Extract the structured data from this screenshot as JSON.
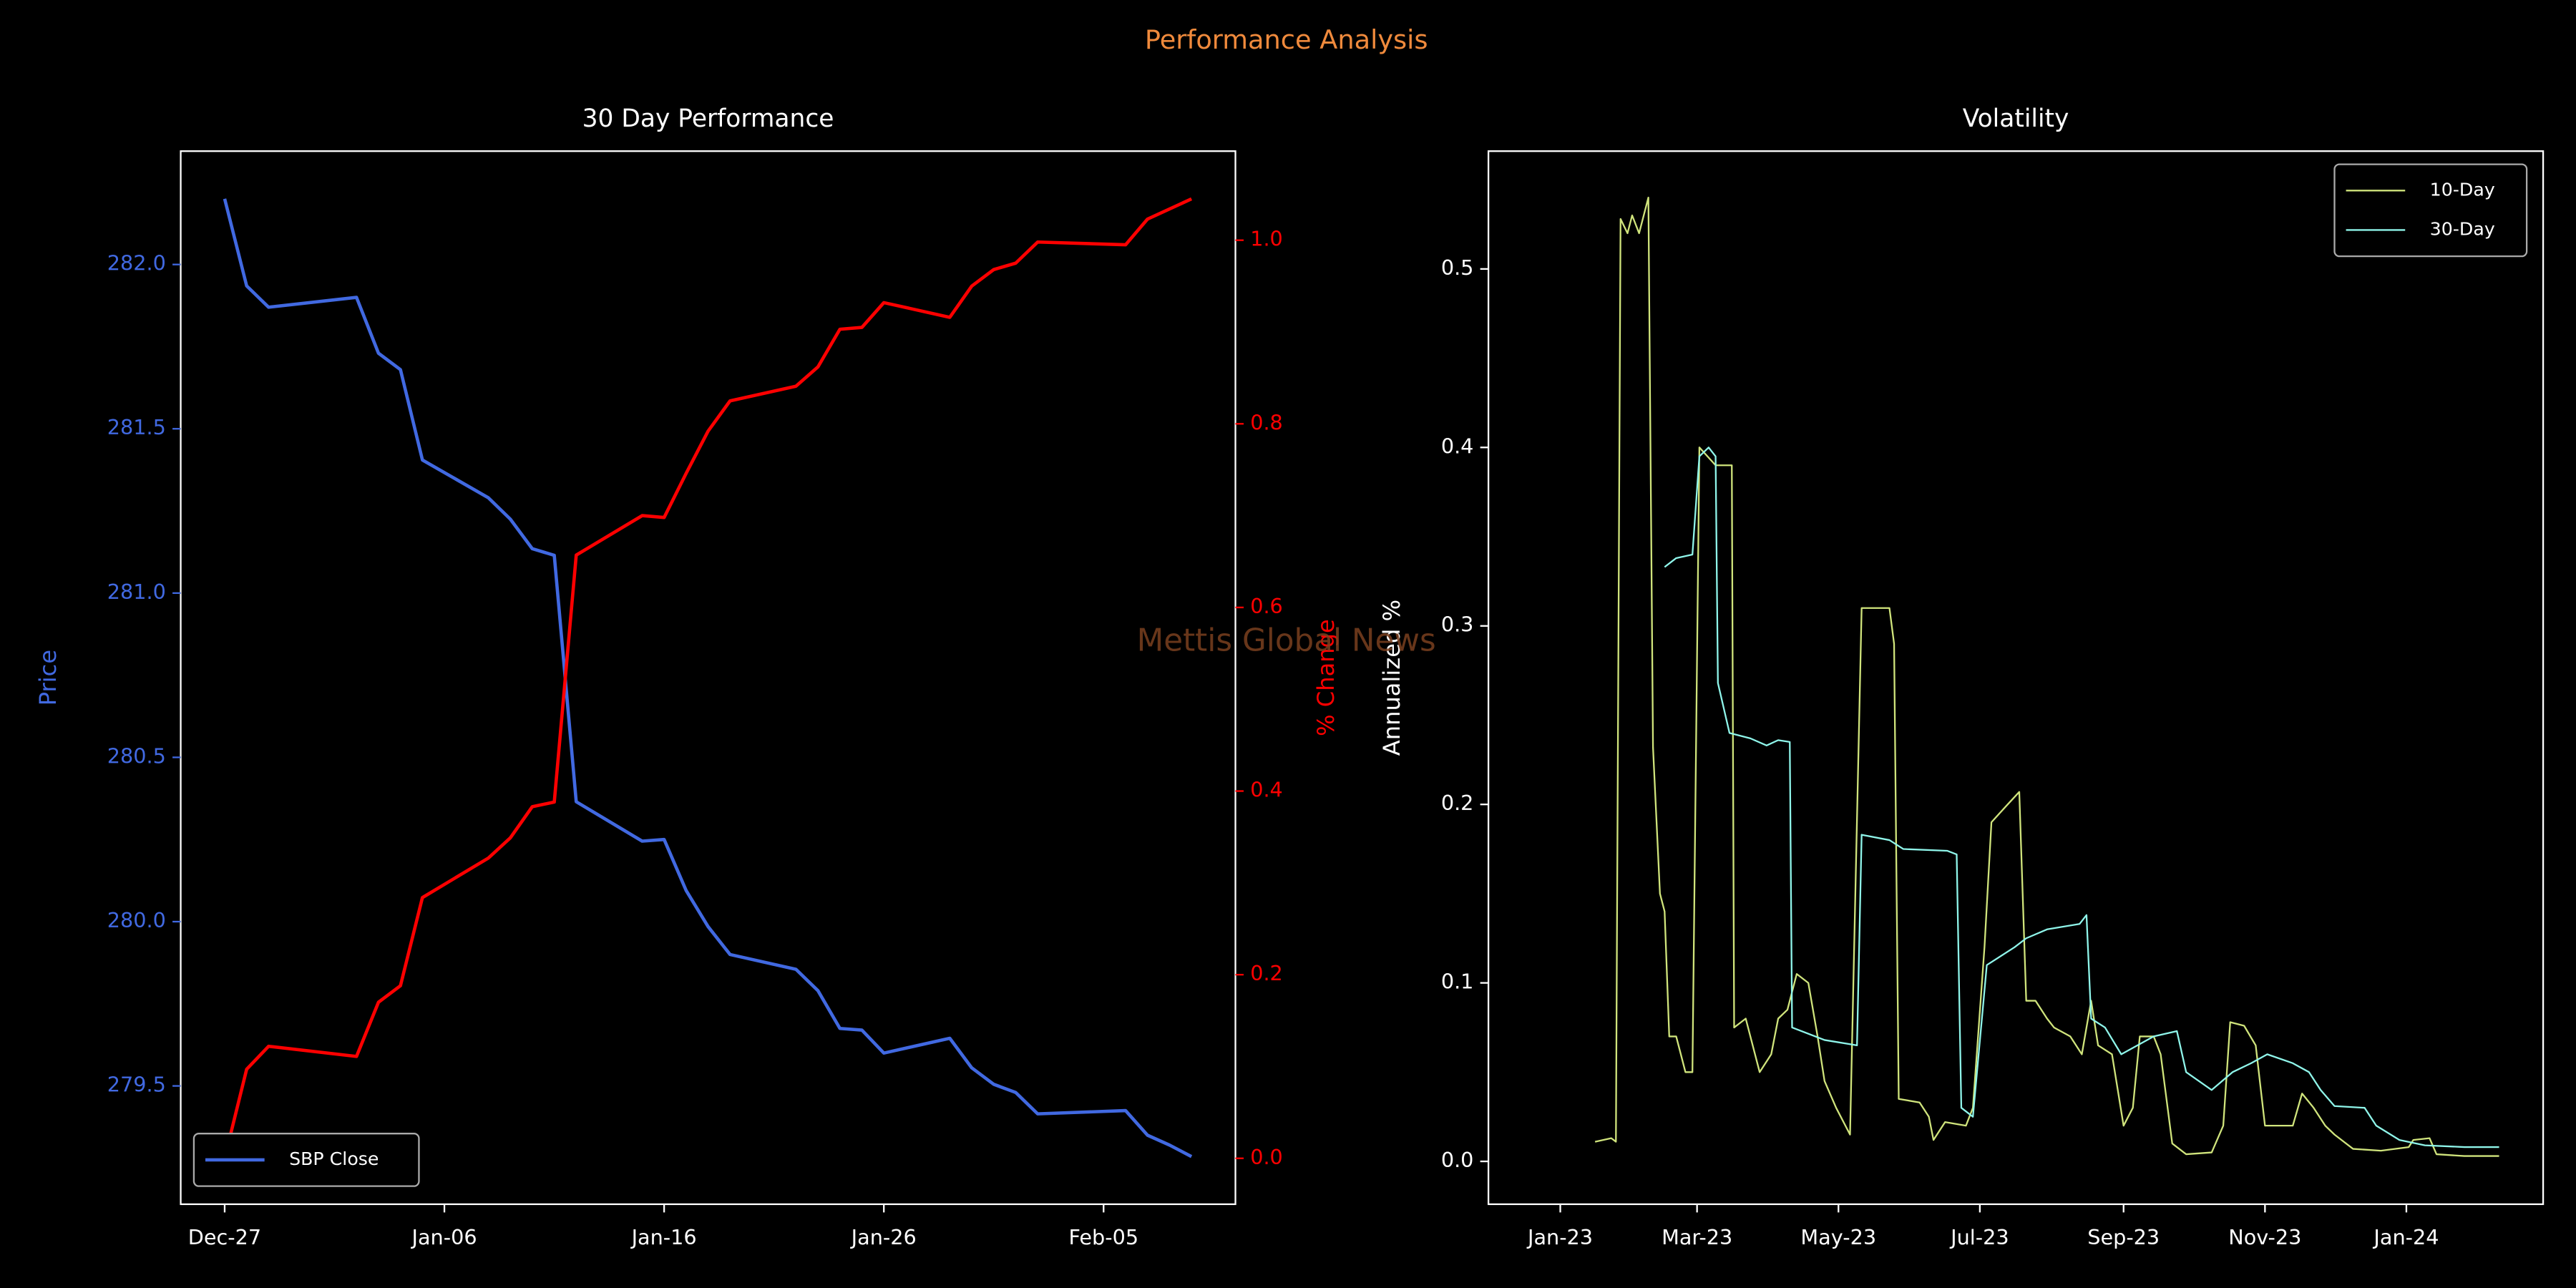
{
  "suptitle": "Performance Analysis",
  "watermark": "Mettis Global News",
  "chart_data": [
    {
      "type": "line",
      "title": "30 Day Performance",
      "ylabel": "Price",
      "y2label": "% Change",
      "legend": "lower left",
      "x": [
        "Dec-27",
        "Dec-28",
        "Dec-29",
        "Jan-02",
        "Jan-03",
        "Jan-04",
        "Jan-05",
        "Jan-08",
        "Jan-09",
        "Jan-10",
        "Jan-11",
        "Jan-12",
        "Jan-15",
        "Jan-16",
        "Jan-17",
        "Jan-18",
        "Jan-19",
        "Jan-22",
        "Jan-23",
        "Jan-24",
        "Jan-25",
        "Jan-26",
        "Jan-29",
        "Jan-30",
        "Jan-31",
        "Feb-01",
        "Feb-02",
        "Feb-06",
        "Feb-07",
        "Feb-08",
        "Feb-09"
      ],
      "xlim": [
        "Dec-25",
        "Feb-11"
      ],
      "xticks": [
        "Dec-27",
        "Jan-06",
        "Jan-16",
        "Jan-26",
        "Feb-05"
      ],
      "ylim": [
        279.14,
        282.345
      ],
      "yticks": [
        279.5,
        {
          "value": 280,
          "label": "280.0"
        },
        280.5,
        {
          "value": 281,
          "label": "281.0"
        },
        281.5,
        {
          "value": 282,
          "label": "282.0"
        }
      ],
      "y2lim": [
        -0.05,
        1.097
      ],
      "y2ticks": [
        {
          "value": 0,
          "label": "0.0"
        },
        0.2,
        0.4,
        0.6,
        0.8,
        {
          "value": 1,
          "label": "1.0"
        }
      ],
      "series": [
        {
          "name": "SBP Close",
          "color": "#4169e1",
          "values": [
            282.2,
            281.935,
            281.87,
            281.9,
            281.73,
            281.68,
            281.405,
            281.29,
            281.225,
            281.135,
            281.115,
            280.365,
            280.245,
            280.25,
            280.095,
            279.985,
            279.9,
            279.855,
            279.79,
            279.675,
            279.67,
            279.6,
            279.645,
            279.555,
            279.505,
            279.48,
            279.415,
            279.425,
            279.35,
            279.32,
            279.285
          ]
        },
        {
          "color": "#ff0000",
          "axis": "y2",
          "values": [
            0.0,
            0.097,
            0.122,
            0.111,
            0.17,
            0.188,
            0.284,
            0.327,
            0.349,
            0.383,
            0.388,
            0.657,
            0.7,
            0.698,
            0.746,
            0.792,
            0.825,
            0.841,
            0.862,
            0.903,
            0.905,
            0.932,
            0.916,
            0.95,
            0.968,
            0.975,
            0.998,
            0.995,
            1.023,
            1.034,
            1.045
          ]
        }
      ]
    },
    {
      "type": "line",
      "title": "Volatility",
      "ylabel": "Annualized %",
      "legend": "upper right",
      "xlim": [
        "2022-12-01",
        "2024-02-29"
      ],
      "xticks": [
        {
          "value": "2023-01-01",
          "label": "Jan-23"
        },
        {
          "value": "2023-03-01",
          "label": "Mar-23"
        },
        {
          "value": "2023-05-01",
          "label": "May-23"
        },
        {
          "value": "2023-07-01",
          "label": "Jul-23"
        },
        {
          "value": "2023-09-01",
          "label": "Sep-23"
        },
        {
          "value": "2023-11-01",
          "label": "Nov-23"
        },
        {
          "value": "2024-01-01",
          "label": "Jan-24"
        }
      ],
      "ylim": [
        -0.024,
        0.566
      ],
      "yticks": [
        {
          "value": 0,
          "label": "0.0"
        },
        0.1,
        0.2,
        0.3,
        0.4,
        0.5
      ],
      "series": [
        {
          "name": "10-Day",
          "color": "#d0e47c",
          "x": [
            "2023-01-16",
            "2023-01-23",
            "2023-01-25",
            "2023-01-27",
            "2023-01-30",
            "2023-02-01",
            "2023-02-04",
            "2023-02-08",
            "2023-02-10",
            "2023-02-13",
            "2023-02-15",
            "2023-02-17",
            "2023-02-20",
            "2023-02-24",
            "2023-02-27",
            "2023-03-02",
            "2023-03-09",
            "2023-03-16",
            "2023-03-17",
            "2023-03-22",
            "2023-03-28",
            "2023-04-02",
            "2023-04-05",
            "2023-04-09",
            "2023-04-13",
            "2023-04-18",
            "2023-04-22",
            "2023-04-25",
            "2023-04-30",
            "2023-05-06",
            "2023-05-11",
            "2023-05-23",
            "2023-05-25",
            "2023-05-27",
            "2023-06-05",
            "2023-06-09",
            "2023-06-11",
            "2023-06-16",
            "2023-06-25",
            "2023-06-28",
            "2023-07-03",
            "2023-07-06",
            "2023-07-13",
            "2023-07-18",
            "2023-07-21",
            "2023-07-25",
            "2023-07-30",
            "2023-08-02",
            "2023-08-09",
            "2023-08-14",
            "2023-08-18",
            "2023-08-21",
            "2023-08-27",
            "2023-09-01",
            "2023-09-05",
            "2023-09-08",
            "2023-09-14",
            "2023-09-17",
            "2023-09-22",
            "2023-09-28",
            "2023-10-09",
            "2023-10-14",
            "2023-10-17",
            "2023-10-23",
            "2023-10-28",
            "2023-11-01",
            "2023-11-13",
            "2023-11-17",
            "2023-11-22",
            "2023-11-27",
            "2023-12-01",
            "2023-12-09",
            "2023-12-21",
            "2024-01-02",
            "2024-01-04",
            "2024-01-11",
            "2024-01-14",
            "2024-01-26",
            "2024-02-10"
          ],
          "values": [
            0.011,
            0.013,
            0.011,
            0.528,
            0.52,
            0.53,
            0.52,
            0.54,
            0.232,
            0.15,
            0.14,
            0.07,
            0.07,
            0.05,
            0.05,
            0.4,
            0.39,
            0.39,
            0.075,
            0.08,
            0.05,
            0.06,
            0.08,
            0.085,
            0.105,
            0.1,
            0.07,
            0.045,
            0.03,
            0.015,
            0.31,
            0.31,
            0.29,
            0.035,
            0.033,
            0.025,
            0.012,
            0.022,
            0.02,
            0.03,
            0.12,
            0.19,
            0.2,
            0.207,
            0.09,
            0.09,
            0.08,
            0.075,
            0.07,
            0.06,
            0.09,
            0.065,
            0.06,
            0.02,
            0.03,
            0.07,
            0.07,
            0.06,
            0.01,
            0.004,
            0.005,
            0.02,
            0.078,
            0.076,
            0.065,
            0.02,
            0.02,
            0.038,
            0.03,
            0.02,
            0.015,
            0.007,
            0.006,
            0.008,
            0.012,
            0.013,
            0.004,
            0.003,
            0.003
          ]
        },
        {
          "name": "30-Day",
          "color": "#8ff5ea",
          "x": [
            "2023-02-15",
            "2023-02-20",
            "2023-02-27",
            "2023-03-02",
            "2023-03-06",
            "2023-03-09",
            "2023-03-10",
            "2023-03-15",
            "2023-03-24",
            "2023-03-31",
            "2023-04-05",
            "2023-04-10",
            "2023-04-11",
            "2023-04-25",
            "2023-05-09",
            "2023-05-11",
            "2023-05-23",
            "2023-05-29",
            "2023-06-17",
            "2023-06-21",
            "2023-06-23",
            "2023-06-28",
            "2023-07-04",
            "2023-07-16",
            "2023-07-21",
            "2023-07-30",
            "2023-08-13",
            "2023-08-16",
            "2023-08-18",
            "2023-08-24",
            "2023-08-31",
            "2023-09-07",
            "2023-09-14",
            "2023-09-24",
            "2023-09-28",
            "2023-10-09",
            "2023-10-18",
            "2023-10-26",
            "2023-11-02",
            "2023-11-13",
            "2023-11-20",
            "2023-11-25",
            "2023-12-01",
            "2023-12-14",
            "2023-12-19",
            "2023-12-29",
            "2024-01-09",
            "2024-01-26",
            "2024-02-10"
          ],
          "values": [
            0.333,
            0.338,
            0.34,
            0.395,
            0.4,
            0.395,
            0.268,
            0.24,
            0.237,
            0.233,
            0.236,
            0.235,
            0.075,
            0.068,
            0.065,
            0.183,
            0.18,
            0.175,
            0.174,
            0.172,
            0.03,
            0.025,
            0.11,
            0.12,
            0.125,
            0.13,
            0.133,
            0.138,
            0.08,
            0.075,
            0.06,
            0.065,
            0.07,
            0.073,
            0.05,
            0.04,
            0.05,
            0.055,
            0.06,
            0.055,
            0.05,
            0.04,
            0.031,
            0.03,
            0.02,
            0.012,
            0.009,
            0.008,
            0.008
          ]
        }
      ]
    }
  ]
}
